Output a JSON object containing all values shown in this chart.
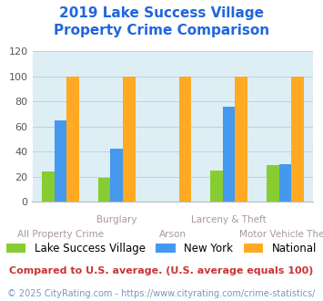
{
  "title": "2019 Lake Success Village\nProperty Crime Comparison",
  "title_color": "#2266dd",
  "title_fontsize": 11,
  "categories": [
    "All Property Crime",
    "Burglary",
    "Arson",
    "Larceny & Theft",
    "Motor Vehicle Theft"
  ],
  "series": {
    "Lake Success Village": [
      24,
      19,
      0,
      25,
      29
    ],
    "New York": [
      65,
      42,
      0,
      76,
      30
    ],
    "National": [
      100,
      100,
      100,
      100,
      100
    ]
  },
  "colors": {
    "Lake Success Village": "#88cc33",
    "New York": "#4499ee",
    "National": "#ffaa22"
  },
  "ylim": [
    0,
    120
  ],
  "yticks": [
    0,
    20,
    40,
    60,
    80,
    100,
    120
  ],
  "bar_width": 0.22,
  "plot_bg_color": "#ddeef5",
  "fig_bg_color": "#ffffff",
  "grid_color": "#bbccdd",
  "xlabel_color": "#aa9999",
  "xlabel_fontsize": 7.5,
  "ytick_fontsize": 8,
  "legend_fontsize": 8.5,
  "footnote1": "Compared to U.S. average. (U.S. average equals 100)",
  "footnote2": "© 2025 CityRating.com - https://www.cityrating.com/crime-statistics/",
  "footnote1_color": "#cc3333",
  "footnote2_color": "#7799bb",
  "footnote1_fontsize": 8,
  "footnote2_fontsize": 7
}
